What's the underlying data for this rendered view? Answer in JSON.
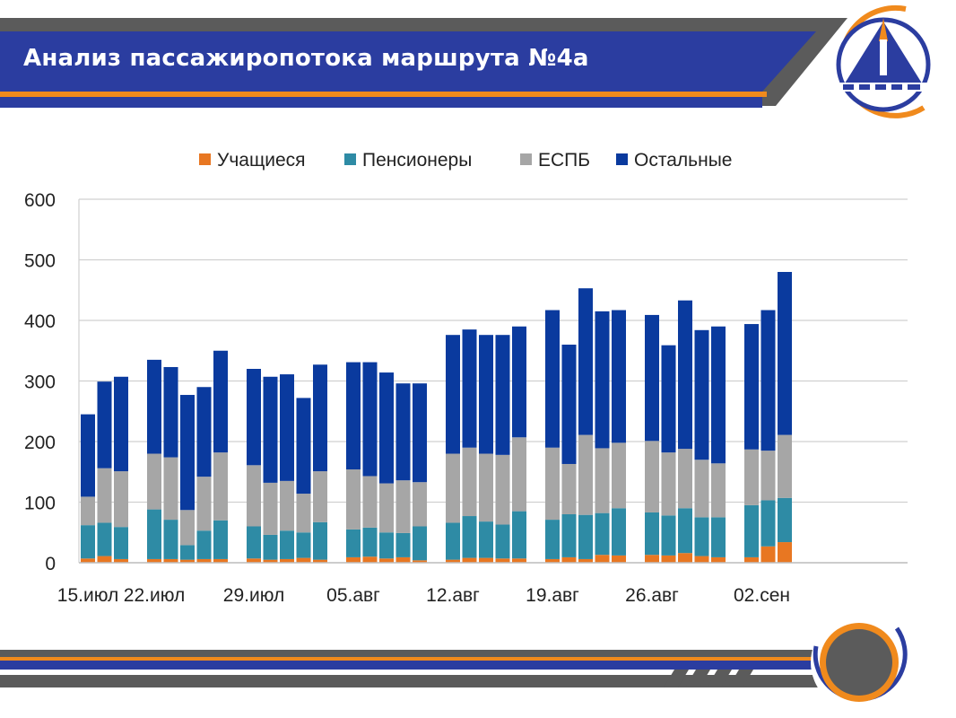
{
  "header": {
    "title": "Анализ пассажиропотока маршрута №4а"
  },
  "colors": {
    "students": "#E87722",
    "pensioners": "#2E8BA5",
    "espb": "#A6A6A6",
    "others": "#0A3A9E",
    "banner_blue": "#2B3DA0",
    "banner_gray": "#5B5B5B",
    "accent_orange": "#F08A1D"
  },
  "chart_data": {
    "type": "bar",
    "stacked": true,
    "legend_position": "top",
    "grid": true,
    "ylim": [
      0,
      600
    ],
    "yticks": [
      0,
      100,
      200,
      300,
      400,
      500,
      600
    ],
    "xtick_labels": [
      {
        "label": "15.июл",
        "index": 0
      },
      {
        "label": "22.июл",
        "index": 3
      },
      {
        "label": "29.июл",
        "index": 8
      },
      {
        "label": "05.авг",
        "index": 13
      },
      {
        "label": "12.авг",
        "index": 18
      },
      {
        "label": "19.авг",
        "index": 23
      },
      {
        "label": "26.авг",
        "index": 28
      },
      {
        "label": "02.сен",
        "index": 33
      }
    ],
    "groups": [
      3,
      5,
      5,
      5,
      5,
      5,
      5,
      3
    ],
    "series": [
      {
        "name": "Учащиеся",
        "color_key": "students",
        "values": [
          7,
          11,
          6,
          6,
          6,
          5,
          6,
          6,
          7,
          5,
          6,
          8,
          5,
          9,
          10,
          7,
          9,
          4,
          5,
          8,
          8,
          7,
          7,
          6,
          9,
          6,
          13,
          12,
          13,
          12,
          16,
          11,
          9,
          9,
          27,
          34
        ]
      },
      {
        "name": "Пенсионеры",
        "color_key": "pensioners",
        "values": [
          55,
          55,
          53,
          82,
          65,
          24,
          47,
          64,
          53,
          41,
          47,
          42,
          62,
          46,
          48,
          43,
          40,
          56,
          61,
          69,
          60,
          56,
          78,
          65,
          71,
          73,
          69,
          78,
          70,
          66,
          74,
          64,
          66,
          86,
          76,
          73
        ]
      },
      {
        "name": "ЕСПБ",
        "color_key": "espb",
        "values": [
          47,
          90,
          92,
          92,
          103,
          58,
          89,
          112,
          101,
          86,
          82,
          64,
          84,
          99,
          85,
          81,
          87,
          73,
          114,
          113,
          112,
          115,
          122,
          119,
          83,
          132,
          107,
          108,
          118,
          104,
          98,
          95,
          89,
          92,
          82,
          104
        ]
      },
      {
        "name": "Остальные",
        "color_key": "others",
        "values": [
          136,
          143,
          156,
          155,
          149,
          190,
          148,
          168,
          159,
          175,
          176,
          158,
          176,
          177,
          188,
          183,
          160,
          163,
          196,
          195,
          196,
          198,
          183,
          227,
          197,
          242,
          226,
          219,
          208,
          177,
          245,
          214,
          226,
          207,
          232,
          269
        ]
      }
    ]
  }
}
